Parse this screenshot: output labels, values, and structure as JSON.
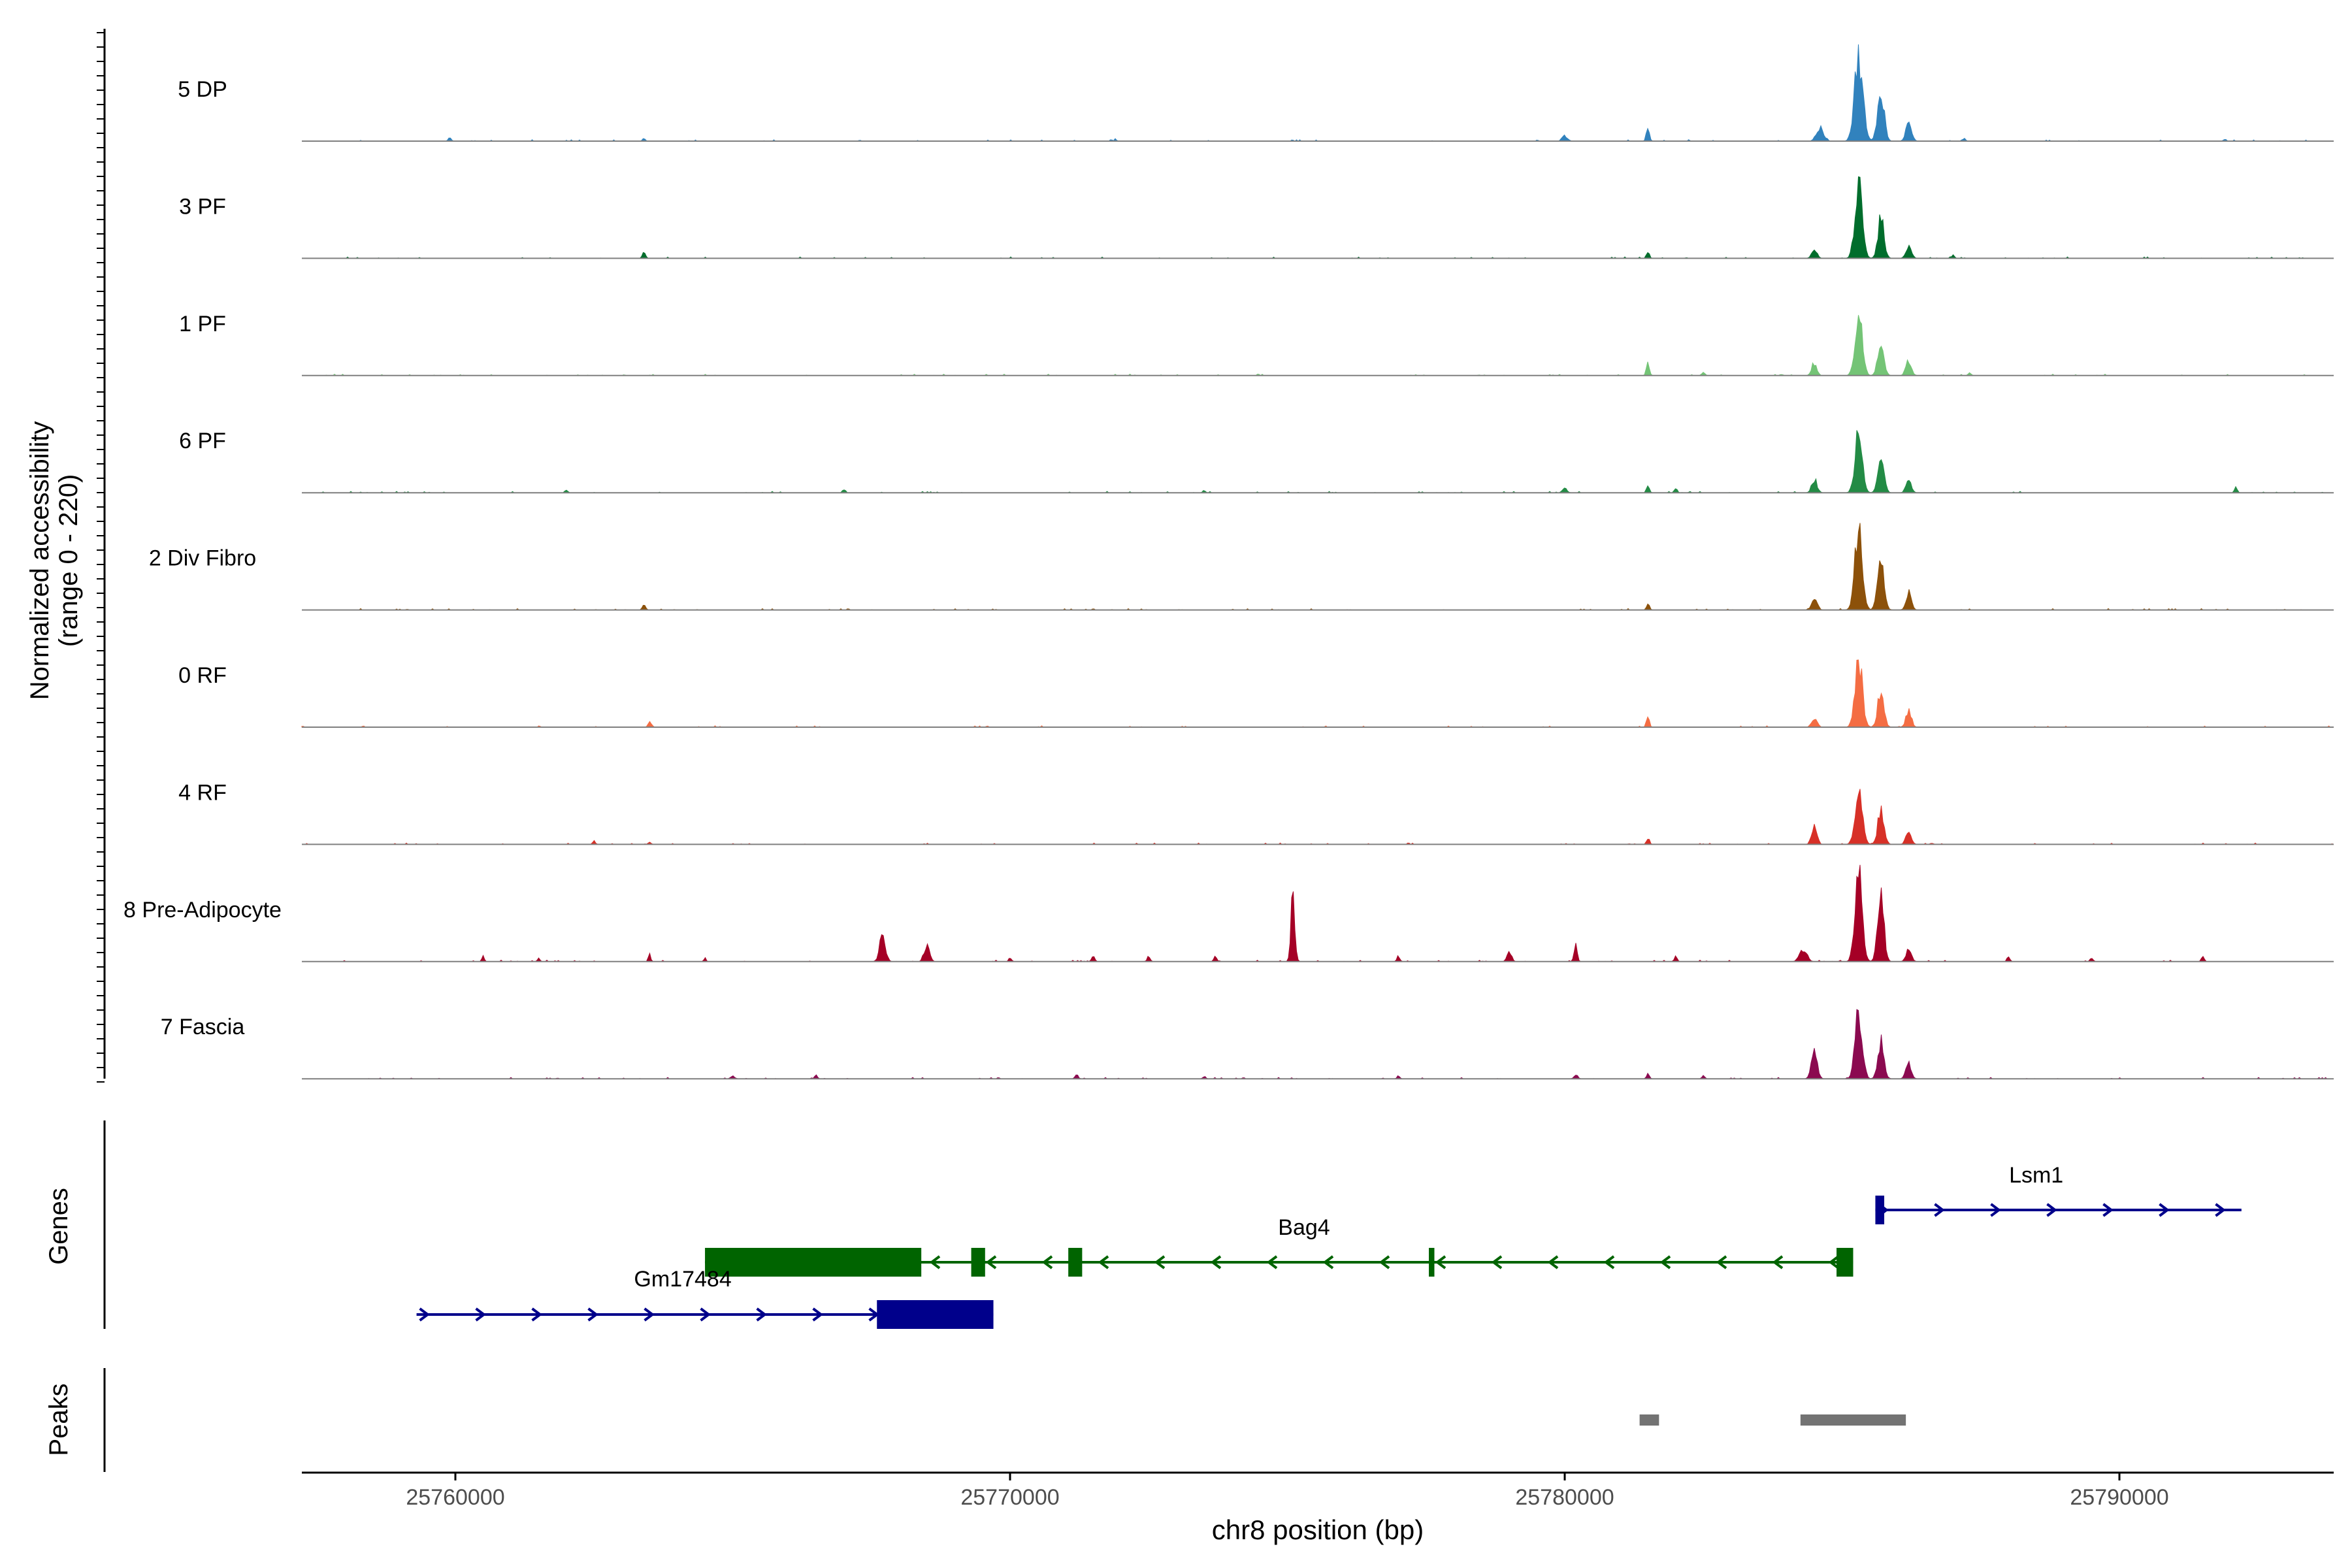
{
  "chart_data": {
    "type": "area",
    "title": "",
    "xlabel": "chr8 position (bp)",
    "ylabel": "Normalized accessibility",
    "ylabel_range": "(range 0 - 220)",
    "ylim": [
      0,
      220
    ],
    "xlim": [
      25757800,
      25793500
    ],
    "x_ticks": [
      25760000,
      25770000,
      25780000,
      25790000
    ],
    "x_tick_labels": [
      "25760000",
      "25770000",
      "25780000",
      "25790000"
    ],
    "tracks": [
      {
        "name": "5 DP",
        "color": "#3182BD",
        "peaks": [
          [
            25759900,
            8,
            80
          ],
          [
            25763400,
            6,
            80
          ],
          [
            25771900,
            5,
            60
          ],
          [
            25780000,
            12,
            150
          ],
          [
            25781500,
            34,
            80
          ],
          [
            25784600,
            30,
            200
          ],
          [
            25785300,
            200,
            230
          ],
          [
            25785700,
            120,
            180
          ],
          [
            25786200,
            40,
            160
          ],
          [
            25787200,
            6,
            80
          ],
          [
            25791900,
            5,
            80
          ]
        ]
      },
      {
        "name": "3 PF",
        "color": "#006D2C",
        "peaks": [
          [
            25763400,
            16,
            80
          ],
          [
            25781500,
            16,
            80
          ],
          [
            25784500,
            20,
            150
          ],
          [
            25785300,
            190,
            200
          ],
          [
            25785700,
            90,
            170
          ],
          [
            25786200,
            30,
            150
          ],
          [
            25787000,
            8,
            80
          ]
        ]
      },
      {
        "name": "1 PF",
        "color": "#74C476",
        "peaks": [
          [
            25781500,
            32,
            80
          ],
          [
            25782500,
            8,
            90
          ],
          [
            25784500,
            30,
            140
          ],
          [
            25785300,
            140,
            200
          ],
          [
            25785700,
            80,
            170
          ],
          [
            25786200,
            36,
            150
          ],
          [
            25787300,
            6,
            80
          ]
        ]
      },
      {
        "name": "6 PF",
        "color": "#238B45",
        "peaks": [
          [
            25762000,
            6,
            80
          ],
          [
            25767000,
            6,
            80
          ],
          [
            25773500,
            5,
            80
          ],
          [
            25780000,
            12,
            120
          ],
          [
            25781500,
            16,
            80
          ],
          [
            25782000,
            10,
            80
          ],
          [
            25784500,
            32,
            150
          ],
          [
            25785300,
            150,
            200
          ],
          [
            25785700,
            80,
            170
          ],
          [
            25786200,
            28,
            150
          ],
          [
            25792100,
            12,
            80
          ]
        ]
      },
      {
        "name": "2 Div Fibro",
        "color": "#8C510A",
        "peaks": [
          [
            25763400,
            14,
            80
          ],
          [
            25781500,
            16,
            80
          ],
          [
            25784500,
            30,
            150
          ],
          [
            25785300,
            190,
            210
          ],
          [
            25785700,
            120,
            180
          ],
          [
            25786200,
            40,
            150
          ]
        ]
      },
      {
        "name": "0 RF",
        "color": "#F46D43",
        "peaks": [
          [
            25763500,
            16,
            80
          ],
          [
            25781500,
            26,
            80
          ],
          [
            25784500,
            20,
            150
          ],
          [
            25785300,
            160,
            200
          ],
          [
            25785700,
            90,
            170
          ],
          [
            25786200,
            40,
            150
          ]
        ]
      },
      {
        "name": "4 RF",
        "color": "#D73027",
        "peaks": [
          [
            25762500,
            8,
            80
          ],
          [
            25763500,
            6,
            80
          ],
          [
            25781500,
            16,
            80
          ],
          [
            25784500,
            50,
            140
          ],
          [
            25785300,
            120,
            200
          ],
          [
            25785700,
            80,
            170
          ],
          [
            25786200,
            30,
            150
          ]
        ]
      },
      {
        "name": "8 Pre-Adipocyte",
        "color": "#A50026",
        "peaks": [
          [
            25760500,
            14,
            60
          ],
          [
            25761500,
            10,
            60
          ],
          [
            25763500,
            18,
            60
          ],
          [
            25764500,
            10,
            60
          ],
          [
            25767700,
            60,
            160
          ],
          [
            25768500,
            36,
            150
          ],
          [
            25770000,
            8,
            80
          ],
          [
            25771500,
            14,
            80
          ],
          [
            25772500,
            12,
            80
          ],
          [
            25773700,
            12,
            80
          ],
          [
            25775100,
            150,
            110
          ],
          [
            25777000,
            14,
            80
          ],
          [
            25779000,
            24,
            120
          ],
          [
            25780200,
            40,
            80
          ],
          [
            25782000,
            12,
            80
          ],
          [
            25784300,
            30,
            200
          ],
          [
            25785300,
            200,
            200
          ],
          [
            25785700,
            160,
            170
          ],
          [
            25786200,
            30,
            150
          ],
          [
            25788000,
            12,
            80
          ],
          [
            25789500,
            10,
            80
          ],
          [
            25791500,
            12,
            80
          ]
        ]
      },
      {
        "name": "7 Fascia",
        "color": "#8B0A50",
        "peaks": [
          [
            25765000,
            8,
            100
          ],
          [
            25766500,
            8,
            80
          ],
          [
            25771200,
            12,
            80
          ],
          [
            25773500,
            6,
            80
          ],
          [
            25777000,
            6,
            80
          ],
          [
            25780200,
            10,
            100
          ],
          [
            25781500,
            12,
            80
          ],
          [
            25782500,
            8,
            80
          ],
          [
            25784500,
            60,
            160
          ],
          [
            25785300,
            150,
            200
          ],
          [
            25785700,
            90,
            170
          ],
          [
            25786200,
            36,
            150
          ]
        ]
      }
    ],
    "genes": {
      "label": "Genes",
      "items": [
        {
          "name": "Lsm1",
          "strand": "+",
          "color": "#00008B",
          "start": 25785600,
          "end": 25792200,
          "exons": [
            [
              25785600,
              25785760
            ]
          ],
          "row": 0
        },
        {
          "name": "Bag4",
          "strand": "-",
          "color": "#006400",
          "start": 25764500,
          "end": 25785200,
          "exons": [
            [
              25764500,
              25768400
            ],
            [
              25769300,
              25769550
            ],
            [
              25771050,
              25771300
            ],
            [
              25777550,
              25777650
            ],
            [
              25784900,
              25785200
            ]
          ],
          "row": 1
        },
        {
          "name": "Gm17484",
          "strand": "+",
          "color": "#00008B",
          "start": 25759300,
          "end": 25769700,
          "exons": [
            [
              25767600,
              25769700
            ]
          ],
          "row": 2
        }
      ]
    },
    "peaks_track": {
      "label": "Peaks",
      "color": "#737373",
      "regions": [
        [
          25781350,
          25781700
        ],
        [
          25784250,
          25786150
        ]
      ]
    }
  }
}
